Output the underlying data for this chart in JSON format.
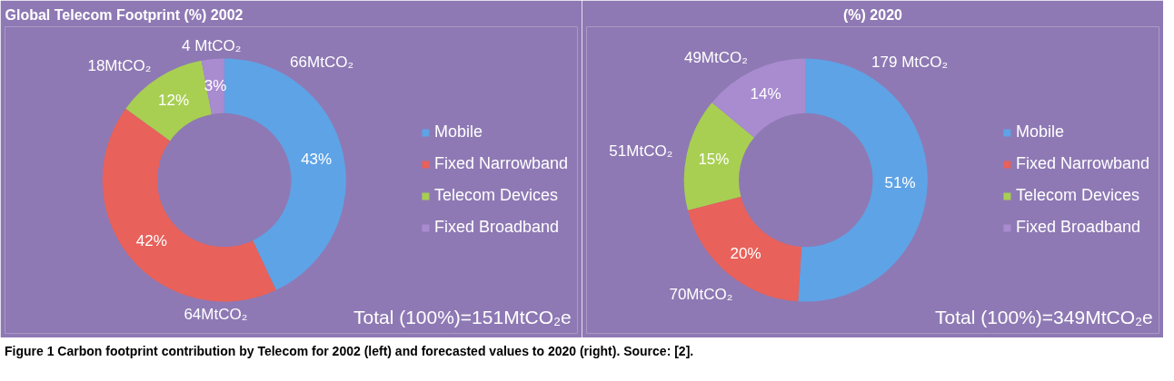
{
  "chart_data": [
    {
      "type": "donut",
      "title": "Global Telecom Footprint (%) 2002",
      "categories": [
        "Mobile",
        "Fixed Narrowband",
        "Telecom Devices",
        "Fixed Broadband"
      ],
      "values": [
        43,
        42,
        12,
        3
      ],
      "value_labels": [
        "43%",
        "42%",
        "12%",
        "3%"
      ],
      "colors": [
        "#5ea3e6",
        "#e8615a",
        "#a8cf52",
        "#a98bd0"
      ],
      "legend": "right",
      "annotations": [
        {
          "text": "66MtCO₂",
          "x": "Mobile"
        },
        {
          "text": "64MtCO₂",
          "x": "Fixed Narrowband"
        },
        {
          "text": "18MtCO₂",
          "x": "Telecom Devices"
        },
        {
          "text": "4 MtCO₂",
          "x": "Fixed Broadband"
        },
        "Total (100%)=151MtCO₂e"
      ]
    },
    {
      "type": "donut",
      "title": "(%) 2020",
      "categories": [
        "Mobile",
        "Fixed Narrowband",
        "Telecom Devices",
        "Fixed Broadband"
      ],
      "values": [
        51,
        20,
        15,
        14
      ],
      "value_labels": [
        "51%",
        "20%",
        "15%",
        "14%"
      ],
      "colors": [
        "#5ea3e6",
        "#e8615a",
        "#a8cf52",
        "#a98bd0"
      ],
      "legend": "right",
      "annotations": [
        {
          "text": "179 MtCO₂",
          "x": "Mobile"
        },
        {
          "text": "70MtCO₂",
          "x": "Fixed Narrowband"
        },
        {
          "text": "51MtCO₂",
          "x": "Telecom Devices"
        },
        {
          "text": "49MtCO₂",
          "x": "Fixed Broadband"
        },
        "Total (100%)=349MtCO₂e",
        "Figure 1 Carbon footprint contribution by Telecom for 2002 (left) and forecasted values to 2020 (right). Source: [2]."
      ]
    }
  ]
}
